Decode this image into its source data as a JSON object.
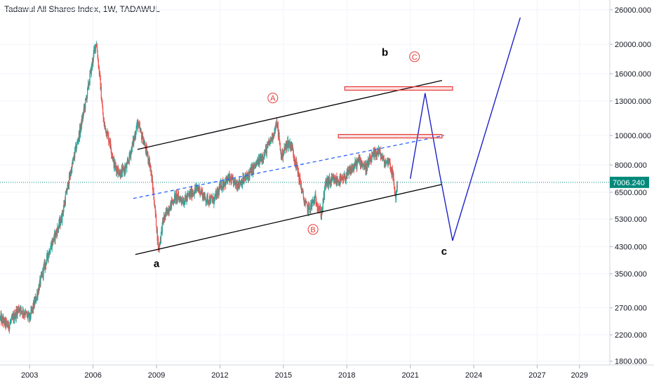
{
  "header": {
    "title": "Tadawul All Shares Index, 1W, TADAWUL"
  },
  "colors": {
    "up": "#26a69a",
    "down": "#ef5350",
    "channel": "#000000",
    "median": "#2962ff",
    "projection": "#1e22c8",
    "zone": "#e53935",
    "last_price": "#00897b"
  },
  "chart_data": {
    "type": "candlestick",
    "title": "Tadawul All Shares Index, 1W, TADAWUL",
    "x_axis": {
      "ticks": [
        "2003",
        "2006",
        "2009",
        "2012",
        "2015",
        "2018",
        "2021",
        "2024",
        "2027",
        "2029"
      ],
      "range": [
        2001.6,
        2030.4
      ]
    },
    "y_axis": {
      "scale": "log",
      "ticks": [
        "26000.000",
        "20000.000",
        "16000.000",
        "13000.000",
        "10000.000",
        "8000.000",
        "6500.000",
        "5300.000",
        "4300.000",
        "3500.000",
        "2700.000",
        "2200.000",
        "1800.000"
      ],
      "range": [
        1750,
        28000
      ]
    },
    "last_price": {
      "value": 7006.24,
      "label": "7006.240"
    },
    "price_path": [
      [
        2001.6,
        2500
      ],
      [
        2002.0,
        2350
      ],
      [
        2002.5,
        2700
      ],
      [
        2003.0,
        2500
      ],
      [
        2003.3,
        2900
      ],
      [
        2003.7,
        3700
      ],
      [
        2004.0,
        4300
      ],
      [
        2004.5,
        5300
      ],
      [
        2004.8,
        6800
      ],
      [
        2005.1,
        8500
      ],
      [
        2005.4,
        10500
      ],
      [
        2005.7,
        13500
      ],
      [
        2006.0,
        18000
      ],
      [
        2006.15,
        20500
      ],
      [
        2006.3,
        16000
      ],
      [
        2006.5,
        11000
      ],
      [
        2006.8,
        9500
      ],
      [
        2007.0,
        8000
      ],
      [
        2007.3,
        7500
      ],
      [
        2007.6,
        7900
      ],
      [
        2007.9,
        9500
      ],
      [
        2008.1,
        11000
      ],
      [
        2008.4,
        9500
      ],
      [
        2008.7,
        8000
      ],
      [
        2008.9,
        6000
      ],
      [
        2009.1,
        4200
      ],
      [
        2009.3,
        5200
      ],
      [
        2009.6,
        5800
      ],
      [
        2009.9,
        6300
      ],
      [
        2010.3,
        6100
      ],
      [
        2010.7,
        6500
      ],
      [
        2011.0,
        6700
      ],
      [
        2011.3,
        6200
      ],
      [
        2011.7,
        6100
      ],
      [
        2012.1,
        6900
      ],
      [
        2012.4,
        7200
      ],
      [
        2012.8,
        6900
      ],
      [
        2013.2,
        7200
      ],
      [
        2013.7,
        8000
      ],
      [
        2014.1,
        8700
      ],
      [
        2014.5,
        10000
      ],
      [
        2014.7,
        11000
      ],
      [
        2014.9,
        8500
      ],
      [
        2015.2,
        9500
      ],
      [
        2015.4,
        9200
      ],
      [
        2015.7,
        7500
      ],
      [
        2016.0,
        6000
      ],
      [
        2016.2,
        5700
      ],
      [
        2016.5,
        6200
      ],
      [
        2016.8,
        5500
      ],
      [
        2017.0,
        7000
      ],
      [
        2017.4,
        7100
      ],
      [
        2017.8,
        7100
      ],
      [
        2018.2,
        7700
      ],
      [
        2018.6,
        8300
      ],
      [
        2018.9,
        7800
      ],
      [
        2019.2,
        8500
      ],
      [
        2019.5,
        8900
      ],
      [
        2019.8,
        8100
      ],
      [
        2020.0,
        8300
      ],
      [
        2020.2,
        7200
      ],
      [
        2020.3,
        6200
      ],
      [
        2020.4,
        7000
      ]
    ],
    "drawings": {
      "channel_upper": [
        [
          2008.1,
          9000
        ],
        [
          2022.5,
          15200
        ]
      ],
      "channel_lower": [
        [
          2008.0,
          4050
        ],
        [
          2022.5,
          6900
        ]
      ],
      "median_line": [
        [
          2007.9,
          6200
        ],
        [
          2022.6,
          10000
        ]
      ],
      "projection": [
        [
          2021.0,
          7200
        ],
        [
          2021.7,
          13800
        ],
        [
          2022.4,
          7400
        ],
        [
          2023.0,
          4500
        ],
        [
          2026.2,
          24500
        ]
      ],
      "zones": [
        {
          "x": [
            2017.6,
            2022.5
          ],
          "price": 9950
        },
        {
          "x": [
            2017.9,
            2023.0
          ],
          "price": 14300
        }
      ]
    },
    "annotations": [
      {
        "text": "a",
        "x": 2009.0,
        "price": 3780,
        "style": "plain"
      },
      {
        "text": "b",
        "x": 2019.8,
        "price": 18800,
        "style": "plain"
      },
      {
        "text": "c",
        "x": 2022.6,
        "price": 4150,
        "style": "plain"
      },
      {
        "text": "A",
        "x": 2014.5,
        "price": 13300,
        "style": "circled"
      },
      {
        "text": "B",
        "x": 2016.4,
        "price": 4900,
        "style": "circled"
      },
      {
        "text": "C",
        "x": 2021.2,
        "price": 18200,
        "style": "circled"
      }
    ]
  }
}
